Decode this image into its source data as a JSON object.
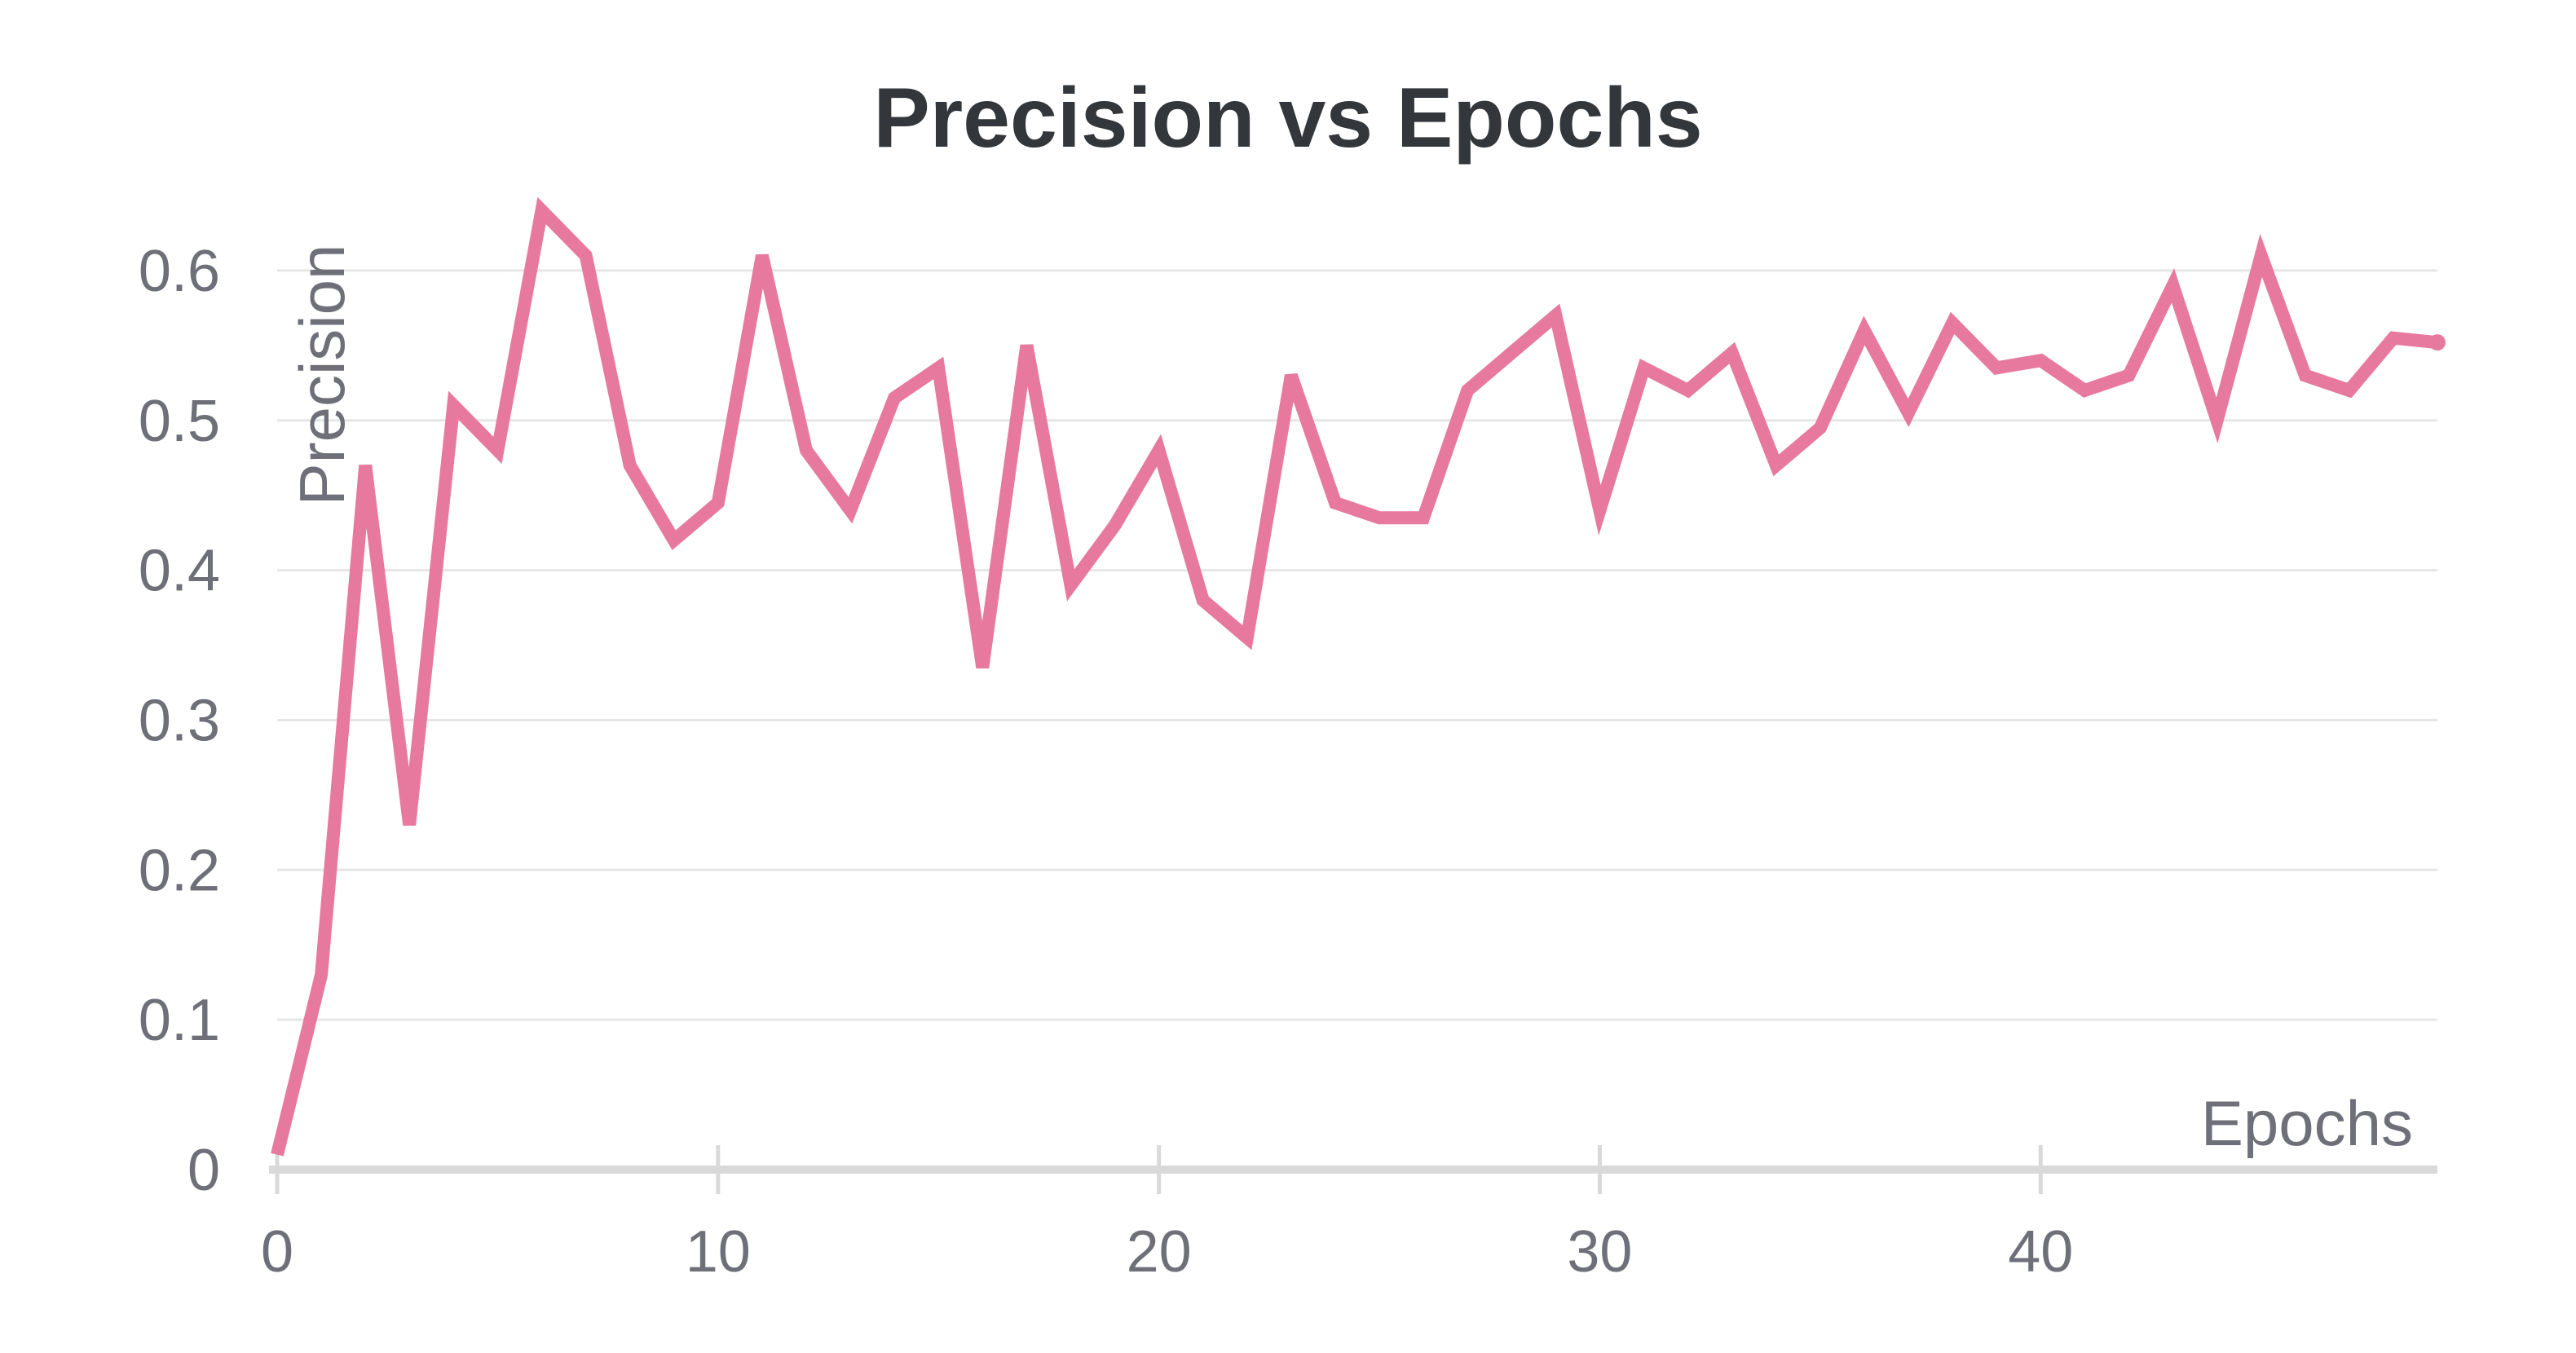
{
  "chart_data": {
    "type": "line",
    "title": "Precision vs Epochs",
    "xlabel": "Epochs",
    "ylabel": "Precision",
    "xlim": [
      0,
      49
    ],
    "ylim": [
      0,
      0.65
    ],
    "x_ticks": [
      0,
      10,
      20,
      30,
      40
    ],
    "y_ticks": [
      0,
      0.1,
      0.2,
      0.3,
      0.4,
      0.5,
      0.6
    ],
    "x_tick_labels": [
      "0",
      "10",
      "20",
      "30",
      "40"
    ],
    "y_tick_labels": [
      "0",
      "0.1",
      "0.2",
      "0.3",
      "0.4",
      "0.5",
      "0.6"
    ],
    "grid": true,
    "legend": "none",
    "series_color": "#e8799e",
    "series": [
      {
        "x": [
          0,
          1,
          2,
          3,
          4,
          5,
          6,
          7,
          8,
          9,
          10,
          11,
          12,
          13,
          14,
          15,
          16,
          17,
          18,
          19,
          20,
          21,
          22,
          23,
          24,
          25,
          26,
          27,
          28,
          29,
          30,
          31,
          32,
          33,
          34,
          35,
          36,
          37,
          38,
          39,
          40,
          41,
          42,
          43,
          44,
          45,
          46,
          47,
          48,
          49
        ],
        "values": [
          0.01,
          0.13,
          0.47,
          0.23,
          0.51,
          0.48,
          0.64,
          0.61,
          0.47,
          0.42,
          0.445,
          0.61,
          0.48,
          0.44,
          0.515,
          0.535,
          0.335,
          0.55,
          0.39,
          0.43,
          0.48,
          0.38,
          0.355,
          0.53,
          0.445,
          0.435,
          0.435,
          0.52,
          0.545,
          0.57,
          0.44,
          0.535,
          0.52,
          0.545,
          0.47,
          0.495,
          0.56,
          0.505,
          0.565,
          0.535,
          0.54,
          0.52,
          0.53,
          0.59,
          0.5,
          0.61,
          0.53,
          0.52,
          0.555,
          0.552
        ]
      }
    ]
  }
}
